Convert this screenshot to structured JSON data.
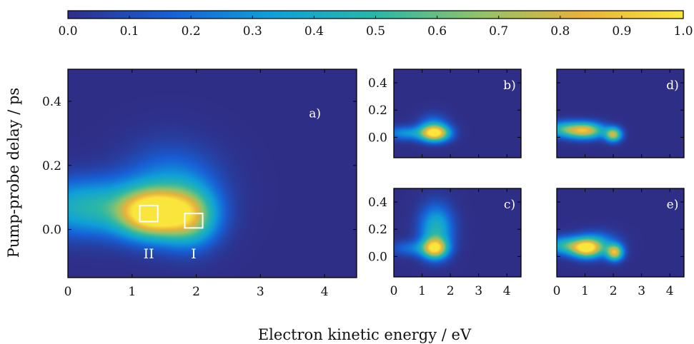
{
  "chart_data": {
    "type": "heatmap",
    "colorbar": {
      "range": [
        0.0,
        1.0
      ],
      "ticks": [
        "0.0",
        "0.1",
        "0.2",
        "0.3",
        "0.4",
        "0.5",
        "0.6",
        "0.7",
        "0.8",
        "0.9",
        "1.0"
      ],
      "colormap": [
        "#2f2e87",
        "#1760d6",
        "#0fa0d8",
        "#2ab7a8",
        "#8fc36a",
        "#e8b23c",
        "#f9e53c"
      ]
    },
    "xlabel": "Electron kinetic energy / eV",
    "ylabel": "Pump-probe delay / ps",
    "panels": [
      {
        "id": "a",
        "label": "a)",
        "xlim": [
          0,
          4.5
        ],
        "ylim": [
          -0.15,
          0.5
        ],
        "xticks": [
          "0",
          "1",
          "2",
          "3",
          "4"
        ],
        "yticks": [
          "0.0",
          "0.2",
          "0.4"
        ],
        "peaks": [
          {
            "x": 1.3,
            "y": 0.05,
            "sx": 0.35,
            "sy": 0.05,
            "amp": 0.95
          },
          {
            "x": 1.9,
            "y": 0.04,
            "sx": 0.3,
            "sy": 0.06,
            "amp": 0.6
          },
          {
            "x": 0.3,
            "y": 0.07,
            "sx": 0.6,
            "sy": 0.06,
            "amp": 0.45
          },
          {
            "x": 1.6,
            "y": 0.12,
            "sx": 0.5,
            "sy": 0.09,
            "amp": 0.3
          }
        ],
        "regions": [
          {
            "label": "II",
            "x0": 1.12,
            "x1": 1.4,
            "y0": 0.025,
            "y1": 0.075
          },
          {
            "label": "I",
            "x0": 1.82,
            "x1": 2.1,
            "y0": 0.005,
            "y1": 0.05
          }
        ]
      },
      {
        "id": "b",
        "label": "b)",
        "xlim": [
          0,
          4.5
        ],
        "ylim": [
          -0.15,
          0.5
        ],
        "xticks": [],
        "yticks": [
          "0.0",
          "0.2",
          "0.4"
        ],
        "peaks": [
          {
            "x": 1.45,
            "y": 0.03,
            "sx": 0.35,
            "sy": 0.04,
            "amp": 0.95
          },
          {
            "x": 0.4,
            "y": 0.03,
            "sx": 0.5,
            "sy": 0.035,
            "amp": 0.3
          },
          {
            "x": 1.4,
            "y": 0.08,
            "sx": 0.35,
            "sy": 0.06,
            "amp": 0.25
          }
        ]
      },
      {
        "id": "d",
        "label": "d)",
        "xlim": [
          0,
          4.5
        ],
        "ylim": [
          -0.15,
          0.5
        ],
        "xticks": [],
        "yticks": [],
        "peaks": [
          {
            "x": 1.0,
            "y": 0.05,
            "sx": 0.45,
            "sy": 0.04,
            "amp": 0.85
          },
          {
            "x": 2.0,
            "y": 0.02,
            "sx": 0.2,
            "sy": 0.035,
            "amp": 0.75
          },
          {
            "x": 0.2,
            "y": 0.06,
            "sx": 0.4,
            "sy": 0.04,
            "amp": 0.4
          }
        ]
      },
      {
        "id": "c",
        "label": "c)",
        "xlim": [
          0,
          4.5
        ],
        "ylim": [
          -0.15,
          0.5
        ],
        "xticks": [
          "0",
          "1",
          "2",
          "3",
          "4"
        ],
        "yticks": [
          "0.0",
          "0.2",
          "0.4"
        ],
        "peaks": [
          {
            "x": 1.45,
            "y": 0.06,
            "sx": 0.3,
            "sy": 0.05,
            "amp": 0.85
          },
          {
            "x": 1.5,
            "y": 0.2,
            "sx": 0.4,
            "sy": 0.12,
            "amp": 0.45
          },
          {
            "x": 0.6,
            "y": 0.06,
            "sx": 0.5,
            "sy": 0.04,
            "amp": 0.2
          }
        ]
      },
      {
        "id": "e",
        "label": "e)",
        "xlim": [
          0,
          4.5
        ],
        "ylim": [
          -0.15,
          0.5
        ],
        "xticks": [
          "0",
          "1",
          "2",
          "3",
          "4"
        ],
        "yticks": [],
        "peaks": [
          {
            "x": 1.05,
            "y": 0.06,
            "sx": 0.35,
            "sy": 0.045,
            "amp": 0.85
          },
          {
            "x": 2.05,
            "y": 0.03,
            "sx": 0.2,
            "sy": 0.04,
            "amp": 0.8
          },
          {
            "x": 0.3,
            "y": 0.08,
            "sx": 0.45,
            "sy": 0.045,
            "amp": 0.45
          },
          {
            "x": 1.4,
            "y": 0.09,
            "sx": 0.5,
            "sy": 0.06,
            "amp": 0.35
          }
        ]
      }
    ]
  }
}
